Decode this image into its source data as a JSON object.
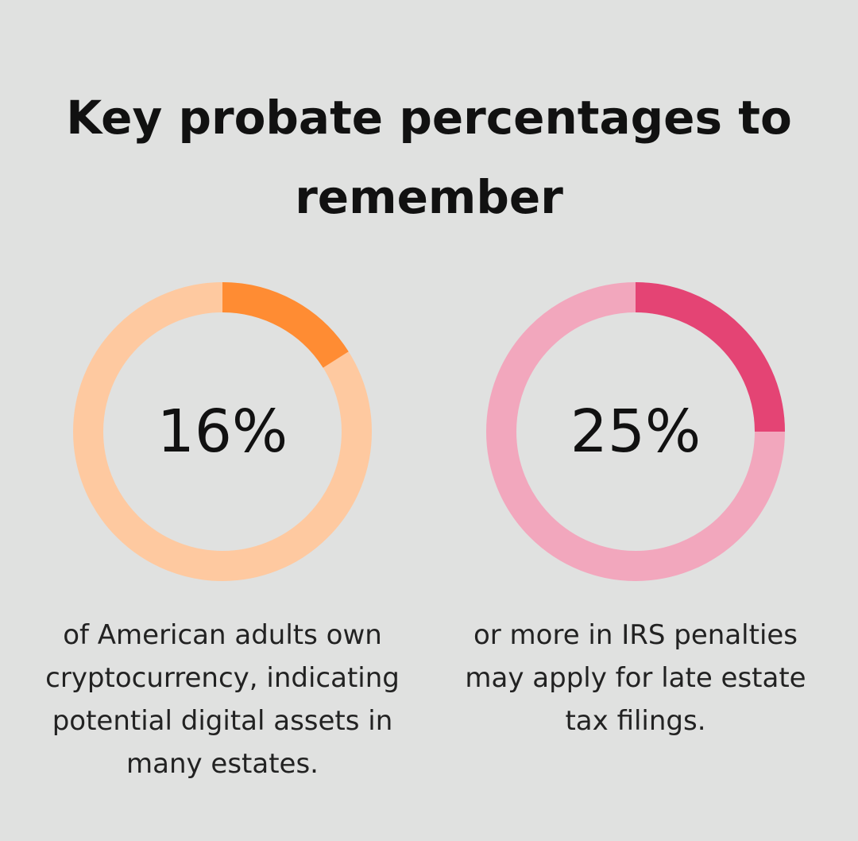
{
  "title": "Key probate percentages to remember",
  "chart_data": [
    {
      "type": "donut",
      "values": [
        16
      ],
      "value_labels": [
        "16%"
      ],
      "color": "#ff8c33",
      "track_color": "#fec9a0",
      "caption": "of American adults own cryptocurrency, indicating potential digital assets in many estates."
    },
    {
      "type": "donut",
      "values": [
        25
      ],
      "value_labels": [
        "25%"
      ],
      "color": "#e44474",
      "track_color": "#f2a7bd",
      "caption": "or more in IRS penalties may apply for late estate tax filings."
    }
  ]
}
